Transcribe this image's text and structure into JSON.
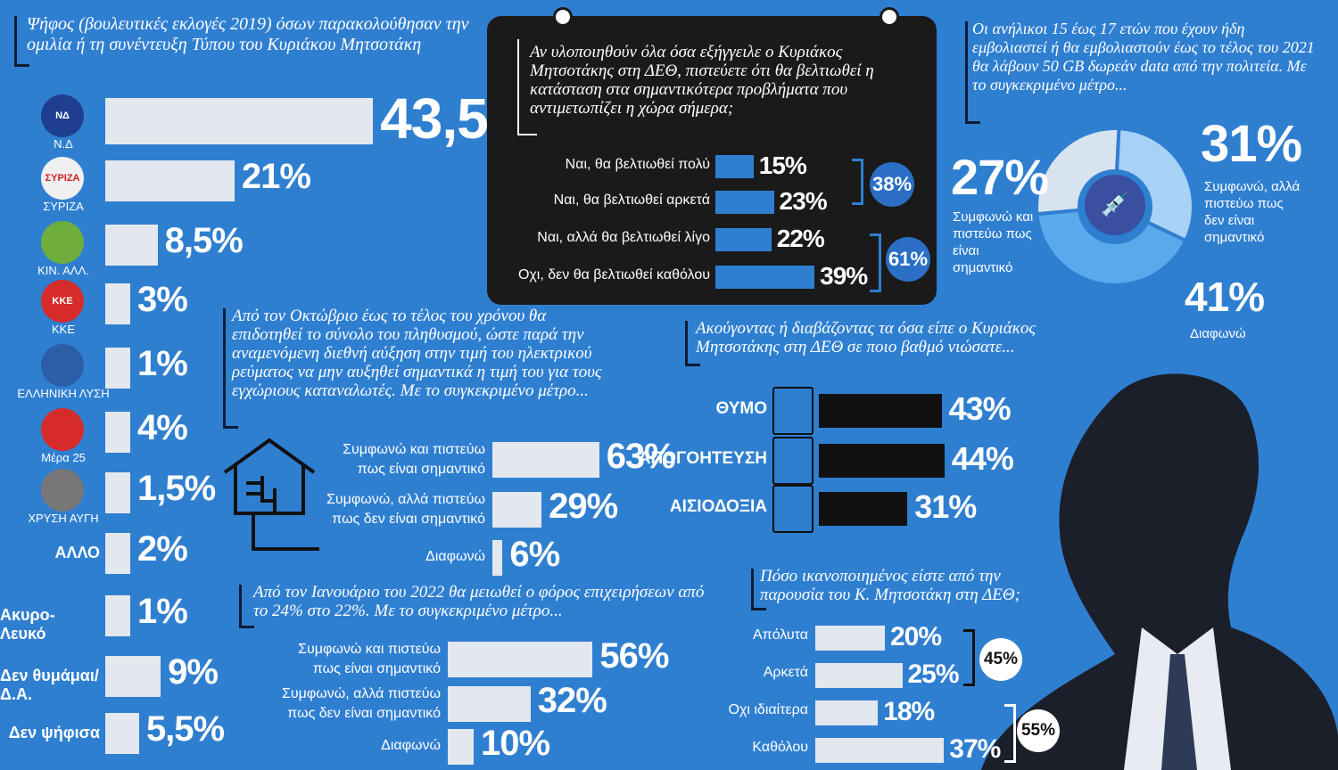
{
  "vote": {
    "title": "Ψήφος (βουλευτικές εκλογές 2019) όσων παρακολούθησαν την ομιλία ή τη συνέντευξη Τύπου του Κυριάκου Μητσοτάκη",
    "rows": [
      {
        "label": "Ν.Δ",
        "pct": "43,5%",
        "value": 43.5,
        "logo": "ΝΔ",
        "color": "#1e3f8f"
      },
      {
        "label": "ΣΥΡΙΖΑ",
        "pct": "21%",
        "value": 21,
        "logo": "ΣΥΡΙΖΑ",
        "color": "#f0f0f0"
      },
      {
        "label": "ΚΙΝ. ΑΛΛ.",
        "pct": "8,5%",
        "value": 8.5,
        "logo": "",
        "color": "#6fae3d"
      },
      {
        "label": "ΚΚΕ",
        "pct": "3%",
        "value": 3,
        "logo": "ΚΚΕ",
        "color": "#d62b2b"
      },
      {
        "label": "ΕΛΛΗΝΙΚΗ ΛΥΣΗ",
        "pct": "1%",
        "value": 1,
        "logo": "",
        "color": "#2c5ea8"
      },
      {
        "label": "Μέρα 25",
        "pct": "4%",
        "value": 4,
        "logo": "",
        "color": "#d62b2b"
      },
      {
        "label": "ΧΡΥΣΗ ΑΥΓΗ",
        "pct": "1,5%",
        "value": 1.5,
        "logo": "",
        "color": "#777"
      },
      {
        "label": "ΑΛΛΟ",
        "pct": "2%",
        "value": 2,
        "logo": "",
        "color": ""
      },
      {
        "label": "Ακυρο-Λευκό",
        "pct": "1%",
        "value": 1,
        "logo": "",
        "color": ""
      },
      {
        "label": "Δεν θυμάμαι/Δ.Α.",
        "pct": "9%",
        "value": 9,
        "logo": "",
        "color": ""
      },
      {
        "label": "Δεν ψήφισα",
        "pct": "5,5%",
        "value": 5.5,
        "logo": "",
        "color": ""
      }
    ]
  },
  "improve": {
    "question": "Αν υλοποιηθούν όλα όσα εξήγγειλε ο Κυριάκος Μητσοτάκης στη ΔΕΘ, πιστεύετε ότι θα βελτιωθεί η κατάσταση στα σημαντικότερα προβλήματα που αντιμετωπίζει η χώρα σήμερα;",
    "rows": [
      {
        "label": "Ναι, θα βελτιωθεί πολύ",
        "pct": "15%",
        "value": 15
      },
      {
        "label": "Ναι, θα βελτιωθεί αρκετά",
        "pct": "23%",
        "value": 23
      },
      {
        "label": "Ναι, αλλά θα βελτιωθεί λίγο",
        "pct": "22%",
        "value": 22
      },
      {
        "label": "Οχι, δεν θα βελτιωθεί καθόλου",
        "pct": "39%",
        "value": 39
      }
    ],
    "group1": "38%",
    "group2": "61%"
  },
  "youth": {
    "text": "Οι ανήλικοι 15 έως 17 ετών που έχουν ήδη εμβολιαστεί ή θα εμβολιαστούν έως το τέλος του 2021 θα λάβουν 50 GB δωρεάν data από την πολιτεία. Με το συγκεκριμένο μέτρο...",
    "slices": [
      {
        "pct": "31%",
        "label": "Συμφωνώ, αλλά πιστεύω πως δεν είναι σημαντικό",
        "value": 31,
        "color": "#a8d2f5"
      },
      {
        "pct": "41%",
        "label": "Διαφωνώ",
        "value": 41,
        "color": "#5aa9ec"
      },
      {
        "pct": "27%",
        "label": "Συμφωνώ και πιστεύω πως είναι σημαντικό",
        "value": 27,
        "color": "#d8e3f0"
      }
    ]
  },
  "power": {
    "text": "Από τον Οκτώβριο έως το τέλος του χρόνου θα επιδοτηθεί το σύνολο του πληθυσμού, ώστε παρά την αναμενόμενη διεθνή αύξηση στην τιμή του ηλεκτρικού ρεύματος να μην αυξηθεί σημαντικά η τιμή του για τους εγχώριους καταναλωτές. Με το συγκεκριμένο μέτρο...",
    "rows": [
      {
        "l1": "Συμφωνώ και πιστεύω",
        "l2": "πως είναι σημαντικό",
        "pct": "63%",
        "value": 63
      },
      {
        "l1": "Συμφωνώ, αλλά πιστεύω",
        "l2": "πως δεν είναι σημαντικό",
        "pct": "29%",
        "value": 29
      },
      {
        "l1": "",
        "l2": "Διαφωνώ",
        "pct": "6%",
        "value": 6
      }
    ]
  },
  "tax": {
    "text": "Από τον Ιανουάριο του 2022 θα μειωθεί ο φόρος επιχειρήσεων από το 24% στο 22%. Με το συγκεκριμένο μέτρο...",
    "rows": [
      {
        "l1": "Συμφωνώ και πιστεύω",
        "l2": "πως είναι σημαντικό",
        "pct": "56%",
        "value": 56
      },
      {
        "l1": "Συμφωνώ, αλλά πιστεύω",
        "l2": "πως δεν είναι σημαντικό",
        "pct": "32%",
        "value": 32
      },
      {
        "l1": "",
        "l2": "Διαφωνώ",
        "pct": "10%",
        "value": 10
      }
    ]
  },
  "feel": {
    "text": "Ακούγοντας ή διαβάζοντας τα όσα είπε ο Κυριάκος Μητσοτάκης στη ΔΕΘ σε ποιο βαθμό νιώσατε...",
    "rows": [
      {
        "label": "ΘΥΜΟ",
        "pct": "43%",
        "value": 43
      },
      {
        "label": "ΑΠΟΓΟΗΤΕΥΣΗ",
        "pct": "44%",
        "value": 44
      },
      {
        "label": "ΑΙΣΙΟΔΟΞΙΑ",
        "pct": "31%",
        "value": 31
      }
    ]
  },
  "satisfied": {
    "text": "Πόσο ικανοποιημένος είστε από την παρουσία του Κ. Μητσοτάκη στη ΔΕΘ;",
    "rows": [
      {
        "label": "Απόλυτα",
        "pct": "20%",
        "value": 20
      },
      {
        "label": "Αρκετά",
        "pct": "25%",
        "value": 25
      },
      {
        "label": "Οχι ιδιαίτερα",
        "pct": "18%",
        "value": 18
      },
      {
        "label": "Καθόλου",
        "pct": "37%",
        "value": 37
      }
    ],
    "group1": "45%",
    "group2": "55%"
  },
  "chart_data": [
    {
      "type": "bar",
      "title": "Ψήφος (βουλευτικές εκλογές 2019) όσων παρακολούθησαν την ομιλία ή τη συνέντευξη Τύπου του Κυριάκου Μητσοτάκη",
      "categories": [
        "Ν.Δ",
        "ΣΥΡΙΖΑ",
        "ΚΙΝ. ΑΛΛ.",
        "ΚΚΕ",
        "ΕΛΛΗΝΙΚΗ ΛΥΣΗ",
        "Μέρα 25",
        "ΧΡΥΣΗ ΑΥΓΗ",
        "ΑΛΛΟ",
        "Ακυρο-Λευκό",
        "Δεν θυμάμαι/Δ.Α.",
        "Δεν ψήφισα"
      ],
      "values": [
        43.5,
        21,
        8.5,
        3,
        1,
        4,
        1.5,
        2,
        1,
        9,
        5.5
      ]
    },
    {
      "type": "bar",
      "categories": [
        "Ναι, θα βελτιωθεί πολύ",
        "Ναι, θα βελτιωθεί αρκετά",
        "Ναι, αλλά θα βελτιωθεί λίγο",
        "Οχι, δεν θα βελτιωθεί καθόλου"
      ],
      "values": [
        15,
        23,
        22,
        39
      ]
    },
    {
      "type": "pie",
      "categories": [
        "Συμφωνώ, αλλά πιστεύω πως δεν είναι σημαντικό",
        "Διαφωνώ",
        "Συμφωνώ και πιστεύω πως είναι σημαντικό"
      ],
      "values": [
        31,
        41,
        27
      ]
    },
    {
      "type": "bar",
      "categories": [
        "Συμφωνώ και πιστεύω πως είναι σημαντικό",
        "Συμφωνώ, αλλά πιστεύω πως δεν είναι σημαντικό",
        "Διαφωνώ"
      ],
      "values": [
        63,
        29,
        6
      ]
    },
    {
      "type": "bar",
      "categories": [
        "Συμφωνώ και πιστεύω πως είναι σημαντικό",
        "Συμφωνώ, αλλά πιστεύω πως δεν είναι σημαντικό",
        "Διαφωνώ"
      ],
      "values": [
        56,
        32,
        10
      ]
    },
    {
      "type": "bar",
      "categories": [
        "ΘΥΜΟ",
        "ΑΠΟΓΟΗΤΕΥΣΗ",
        "ΑΙΣΙΟΔΟΞΙΑ"
      ],
      "values": [
        43,
        44,
        31
      ]
    },
    {
      "type": "bar",
      "categories": [
        "Απόλυτα",
        "Αρκετά",
        "Οχι ιδιαίτερα",
        "Καθόλου"
      ],
      "values": [
        20,
        25,
        18,
        37
      ]
    }
  ]
}
